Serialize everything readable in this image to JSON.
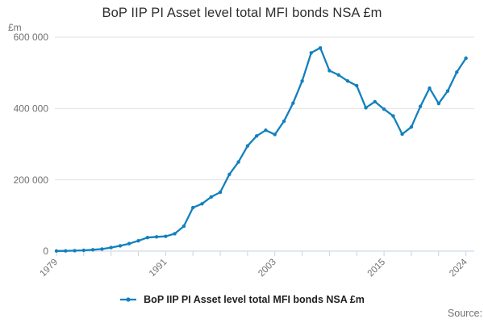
{
  "header": {
    "title": "BoP IIP PI Asset level total MFI bonds NSA £m"
  },
  "y_axis": {
    "unit_label": "£m"
  },
  "legend": {
    "label": "BoP IIP PI Asset level total MFI bonds NSA £m"
  },
  "footer": {
    "source_label": "Source:"
  },
  "colors": {
    "line": "#1380bd",
    "grid": "#e2e2e2",
    "axis": "#c6d3e1",
    "tick_text": "#707070",
    "title_text": "#2e2e2e",
    "legend_text": "#1f1f1f",
    "source_text": "#707070"
  },
  "chart_data": {
    "type": "line",
    "title": "BoP IIP PI Asset level total MFI bonds NSA £m",
    "xlabel": "",
    "ylabel": "£m",
    "x": [
      1979,
      1980,
      1981,
      1982,
      1983,
      1984,
      1985,
      1986,
      1987,
      1988,
      1989,
      1990,
      1991,
      1992,
      1993,
      1994,
      1995,
      1996,
      1997,
      1998,
      1999,
      2000,
      2001,
      2002,
      2003,
      2004,
      2005,
      2006,
      2007,
      2008,
      2009,
      2010,
      2011,
      2012,
      2013,
      2014,
      2015,
      2016,
      2017,
      2018,
      2019,
      2020,
      2021,
      2022,
      2023,
      2024
    ],
    "values": [
      400,
      700,
      1300,
      2300,
      3800,
      6000,
      10000,
      15000,
      21000,
      29000,
      38000,
      40000,
      41500,
      49000,
      70000,
      122000,
      133000,
      152000,
      165000,
      215000,
      250000,
      295000,
      323000,
      339000,
      327000,
      364000,
      415000,
      477000,
      556000,
      570000,
      506000,
      494000,
      477000,
      464000,
      402000,
      419000,
      398000,
      379000,
      328000,
      348000,
      406000,
      457000,
      414000,
      449000,
      502000,
      541000
    ],
    "ylim": [
      0,
      600000
    ],
    "y_ticks": [
      0,
      200000,
      400000,
      600000
    ],
    "y_tick_labels": [
      "0",
      "200 000",
      "400 000",
      "600 000"
    ],
    "x_tick_interval": 3,
    "x_labeled_ticks": [
      1979,
      1991,
      2003,
      2015,
      2024
    ],
    "grid": "horizontal",
    "legend_position": "bottom",
    "marker": "circle"
  }
}
